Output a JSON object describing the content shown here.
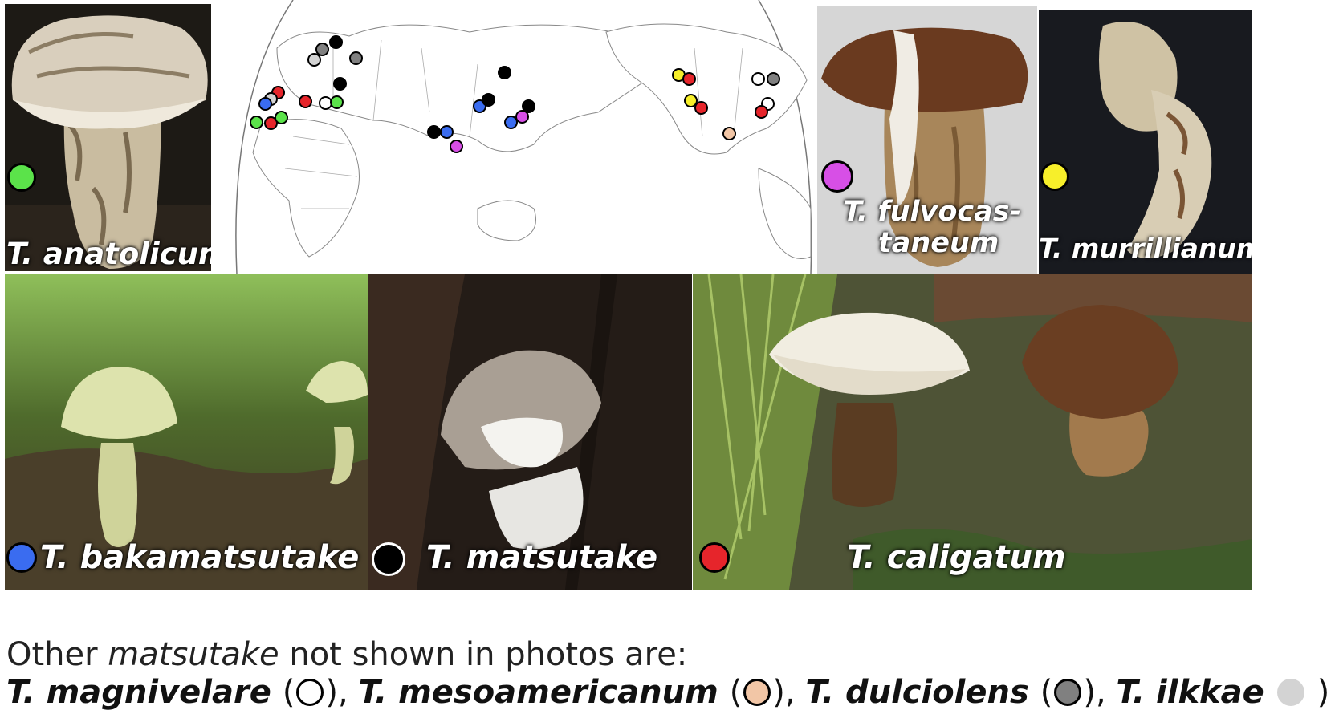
{
  "colors": {
    "anatolicum": "#5be34a",
    "bakamatsutake": "#3a6cf0",
    "matsutake": "#000000",
    "caligatum": "#e6252b",
    "fulvocastaneum": "#d74fe6",
    "murrillianum": "#f7ef2a",
    "magnivelare": "#ffffff",
    "mesoamericanum": "#f2c6a6",
    "dulciolens": "#808080",
    "ilkkae": "#d3d3d3"
  },
  "photos": {
    "anatolicum": {
      "label": "T. anatolicum",
      "dot_color": "#5be34a"
    },
    "fulvocastaneum": {
      "label_line1": "T. fulvocas-",
      "label_line2": "taneum",
      "dot_color": "#d74fe6"
    },
    "murrillianum": {
      "label": "T. murrillianum",
      "dot_color": "#f7ef2a"
    },
    "bakamatsutake": {
      "label": "T. bakamatsutake",
      "dot_color": "#3a6cf0"
    },
    "matsutake": {
      "label": "T. matsutake",
      "dot_color": "#000000"
    },
    "caligatum": {
      "label": "T. caligatum",
      "dot_color": "#e6252b"
    }
  },
  "caption": {
    "line1_prefix": "Other ",
    "line1_italic": "matsutake",
    "line1_suffix": " not shown in photos are:",
    "species": [
      {
        "name": "T. magnivelare",
        "color": "#ffffff"
      },
      {
        "name": "T. mesoamericanum",
        "color": "#f2c6a6"
      },
      {
        "name": "T. dulciolens",
        "color": "#808080"
      },
      {
        "name": "T. ilkkae",
        "color": "#d3d3d3"
      }
    ],
    "open_paren": "(",
    "close_paren": ")",
    "separator": ", "
  }
}
